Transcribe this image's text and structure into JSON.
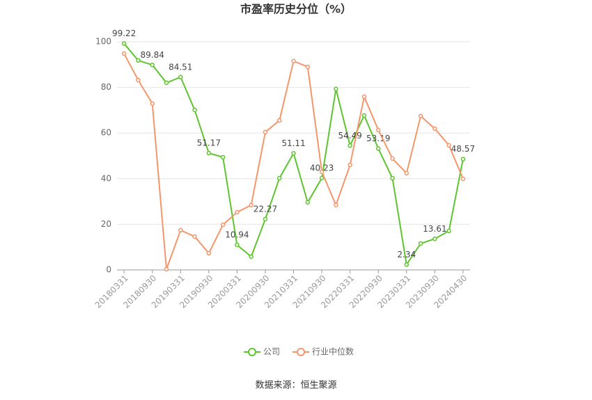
{
  "chart_data": {
    "type": "line",
    "title": "市盈率历史分位（%）",
    "categories": [
      "20180331",
      null,
      "20180930",
      null,
      "20190331",
      null,
      "20190930",
      null,
      "20200331",
      null,
      "20200930",
      null,
      "20210331",
      null,
      "20210930",
      null,
      "20220331",
      null,
      "20220930",
      null,
      "20230331",
      null,
      "20230930",
      null,
      "20240430"
    ],
    "series": [
      {
        "name": "公司",
        "color": "#5dc42e",
        "values": [
          99.22,
          91.8,
          89.84,
          82.0,
          84.51,
          70.1,
          51.17,
          49.4,
          10.94,
          5.8,
          22.27,
          40.2,
          51.11,
          29.6,
          40.23,
          79.3,
          54.49,
          67.7,
          53.19,
          40.2,
          2.34,
          11.6,
          13.61,
          17.1,
          48.57
        ],
        "value_labels": [
          "99.22",
          null,
          "89.84",
          null,
          "84.51",
          null,
          "51.17",
          null,
          "10.94",
          null,
          "22.27",
          null,
          "51.11",
          null,
          "40.23",
          null,
          "54.49",
          null,
          "53.19",
          null,
          "2.34",
          null,
          "13.61",
          null,
          "48.57"
        ]
      },
      {
        "name": "行业中位数",
        "color": "#f5956a",
        "values": [
          94.8,
          83.2,
          72.9,
          0.3,
          17.4,
          14.6,
          7.3,
          19.8,
          25.3,
          28.4,
          60.4,
          65.5,
          91.5,
          89.0,
          43.0,
          28.4,
          46.0,
          75.9,
          61.3,
          48.8,
          42.4,
          67.4,
          61.9,
          54.6,
          39.9
        ]
      }
    ],
    "ylim": [
      0,
      100
    ],
    "yticks": [
      0,
      20,
      40,
      60,
      80,
      100
    ],
    "grid": true,
    "source": "数据来源：恒生聚源"
  }
}
